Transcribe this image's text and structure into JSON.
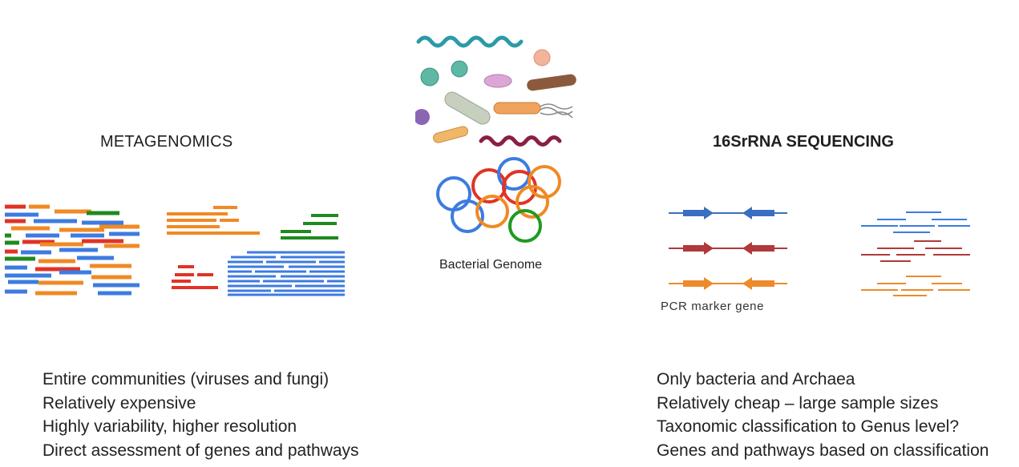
{
  "left": {
    "title": "METAGENOMICS",
    "points": [
      "Entire communities (viruses and fungi)",
      "Relatively expensive",
      "Highly variability, higher resolution",
      "Direct assessment of genes and pathways"
    ]
  },
  "center": {
    "label": "Bacterial Genome"
  },
  "right": {
    "title": "16SrRNA SEQUENCING",
    "pcr_label": "PCR marker gene",
    "points": [
      "Only bacteria and Archaea",
      "Relatively cheap – large sample sizes",
      "Taxonomic classification to Genus level?",
      "Genes and pathways based on classification"
    ]
  },
  "colors": {
    "blue": "#4472c4",
    "red": "#c0392b",
    "orange": "#ed8a2b",
    "green": "#2e8b2e"
  }
}
